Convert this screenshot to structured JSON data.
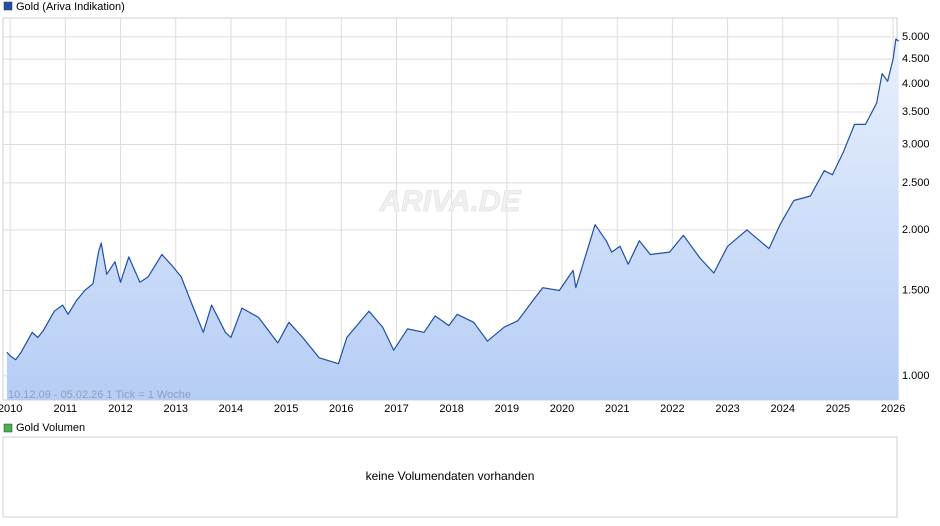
{
  "chart_data": {
    "type": "line",
    "legend": "Gold (Ariva Indikation)",
    "annotation": "10.12.09 - 05.02.26   1 Tick = 1 Woche",
    "watermark": "ARIVA.DE",
    "log_scale": true,
    "grid": true,
    "xlim": [
      2009.87,
      2026.07
    ],
    "xticks": [
      2010,
      2011,
      2012,
      2013,
      2014,
      2015,
      2016,
      2017,
      2018,
      2019,
      2020,
      2021,
      2022,
      2023,
      2024,
      2025,
      2026
    ],
    "ylim": [
      892,
      5470
    ],
    "yticks": [
      {
        "value": 1000,
        "label": "1.000"
      },
      {
        "value": 1500,
        "label": "1.500"
      },
      {
        "value": 2000,
        "label": "2.000"
      },
      {
        "value": 2500,
        "label": "2.500"
      },
      {
        "value": 3000,
        "label": "3.000"
      },
      {
        "value": 3500,
        "label": "3.500"
      },
      {
        "value": 4000,
        "label": "4.000"
      },
      {
        "value": 4500,
        "label": "4.500"
      },
      {
        "value": 5000,
        "label": "5.000"
      }
    ],
    "series": [
      {
        "name": "Gold (Ariva Indikation)",
        "color": "#1f4fa8",
        "x": [
          2009.94,
          2010.0,
          2010.1,
          2010.2,
          2010.4,
          2010.5,
          2010.6,
          2010.8,
          2010.95,
          2011.05,
          2011.2,
          2011.35,
          2011.5,
          2011.6,
          2011.65,
          2011.75,
          2011.9,
          2012.0,
          2012.15,
          2012.35,
          2012.5,
          2012.75,
          2012.95,
          2013.1,
          2013.3,
          2013.5,
          2013.65,
          2013.9,
          2014.0,
          2014.2,
          2014.5,
          2014.85,
          2015.05,
          2015.3,
          2015.6,
          2015.95,
          2016.1,
          2016.5,
          2016.75,
          2016.95,
          2017.2,
          2017.5,
          2017.7,
          2017.95,
          2018.1,
          2018.4,
          2018.65,
          2018.95,
          2019.2,
          2019.45,
          2019.65,
          2019.95,
          2020.2,
          2020.25,
          2020.4,
          2020.6,
          2020.8,
          2020.9,
          2021.05,
          2021.2,
          2021.4,
          2021.6,
          2021.95,
          2022.2,
          2022.5,
          2022.75,
          2023.0,
          2023.35,
          2023.75,
          2023.95,
          2024.2,
          2024.5,
          2024.75,
          2024.9,
          2025.1,
          2025.3,
          2025.5,
          2025.7,
          2025.8,
          2025.9,
          2026.0,
          2026.05,
          2026.1
        ],
        "values": [
          1120,
          1100,
          1080,
          1120,
          1230,
          1200,
          1240,
          1360,
          1400,
          1340,
          1430,
          1500,
          1550,
          1800,
          1880,
          1620,
          1720,
          1560,
          1760,
          1560,
          1600,
          1780,
          1680,
          1600,
          1400,
          1230,
          1400,
          1230,
          1200,
          1380,
          1320,
          1170,
          1290,
          1200,
          1090,
          1060,
          1200,
          1360,
          1260,
          1130,
          1250,
          1230,
          1330,
          1270,
          1340,
          1290,
          1180,
          1260,
          1300,
          1420,
          1520,
          1500,
          1650,
          1520,
          1730,
          2050,
          1900,
          1800,
          1850,
          1700,
          1900,
          1780,
          1800,
          1950,
          1750,
          1630,
          1850,
          2000,
          1830,
          2050,
          2300,
          2350,
          2650,
          2600,
          2900,
          3300,
          3300,
          3650,
          4200,
          4050,
          4500,
          4950,
          4900
        ]
      }
    ]
  },
  "volume_panel": {
    "legend": "Gold Volumen",
    "message": "keine Volumendaten vorhanden"
  }
}
